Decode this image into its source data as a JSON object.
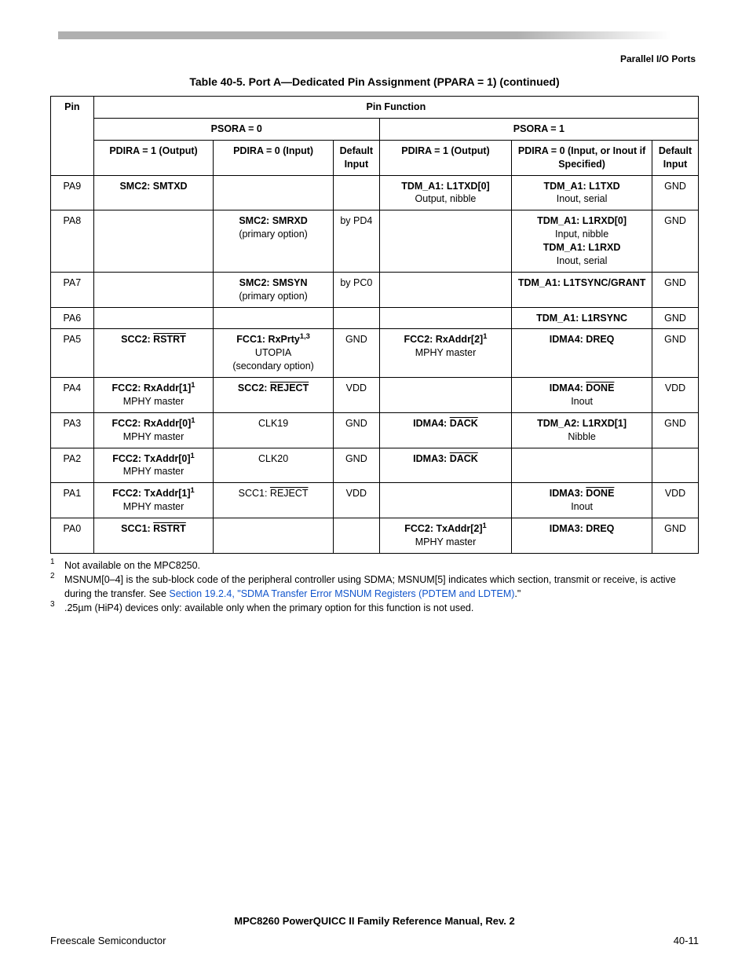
{
  "header": {
    "corner": "Parallel I/O Ports"
  },
  "table": {
    "caption": "Table 40-5. Port A—Dedicated Pin Assignment (PPARA = 1) (continued)",
    "head": {
      "pin": "Pin",
      "pinfunc": "Pin Function",
      "psora0": "PSORA = 0",
      "psora1": "PSORA = 1",
      "pdira1out0": "PDIRA = 1 (Output)",
      "pdira0in0": "PDIRA = 0 (Input)",
      "def0": "Default Input",
      "pdira1out1": "PDIRA = 1 (Output)",
      "pdira0in1": "PDIRA = 0 (Input, or Inout if Specified)",
      "def1": "Default Input"
    }
  },
  "footnotes": {
    "f1": "Not available on the MPC8250.",
    "f2a": "MSNUM[0–4] is the sub-block code of the peripheral controller using SDMA; MSNUM[5] indicates which section, transmit or receive, is active during the transfer. See ",
    "f2link": "Section 19.2.4, \"SDMA Transfer Error MSNUM Registers (PDTEM and LDTEM)",
    "f2b": ".\"",
    "f3": ".25µm (HiP4) devices only: available only when the primary option for this function is not used."
  },
  "footer": {
    "manual": "MPC8260 PowerQUICC II Family Reference Manual, Rev. 2",
    "vendor": "Freescale Semiconductor",
    "page": "40-11"
  }
}
